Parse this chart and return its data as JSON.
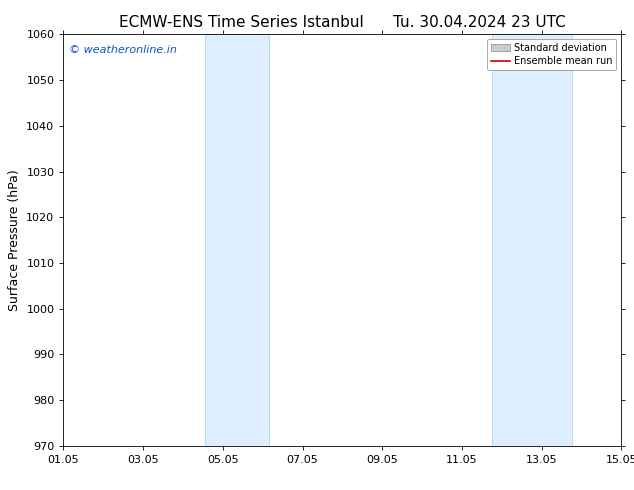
{
  "title_left": "ECMW-ENS Time Series Istanbul",
  "title_right": "Tu. 30.04.2024 23 UTC",
  "ylabel": "Surface Pressure (hPa)",
  "ylim": [
    970,
    1060
  ],
  "yticks": [
    970,
    980,
    990,
    1000,
    1010,
    1020,
    1030,
    1040,
    1050,
    1060
  ],
  "xlim": [
    0,
    14
  ],
  "xtick_labels": [
    "01.05",
    "03.05",
    "05.05",
    "07.05",
    "09.05",
    "11.05",
    "13.05",
    "15.05"
  ],
  "xtick_positions": [
    0,
    2,
    4,
    6,
    8,
    10,
    12,
    14
  ],
  "shaded_bands": [
    {
      "x_start": 3.55,
      "x_end": 5.15
    },
    {
      "x_start": 10.75,
      "x_end": 12.75
    }
  ],
  "shaded_color": "#ddeeff",
  "shaded_edge_color": "#aaccee",
  "background_color": "#ffffff",
  "watermark_text": "© weatheronline.in",
  "watermark_color": "#1155cc",
  "legend_std_label": "Standard deviation",
  "legend_mean_label": "Ensemble mean run",
  "legend_std_color": "#cccccc",
  "legend_mean_color": "#cc0000",
  "title_fontsize": 11,
  "axis_label_fontsize": 9,
  "tick_fontsize": 8,
  "watermark_fontsize": 8,
  "legend_fontsize": 7
}
